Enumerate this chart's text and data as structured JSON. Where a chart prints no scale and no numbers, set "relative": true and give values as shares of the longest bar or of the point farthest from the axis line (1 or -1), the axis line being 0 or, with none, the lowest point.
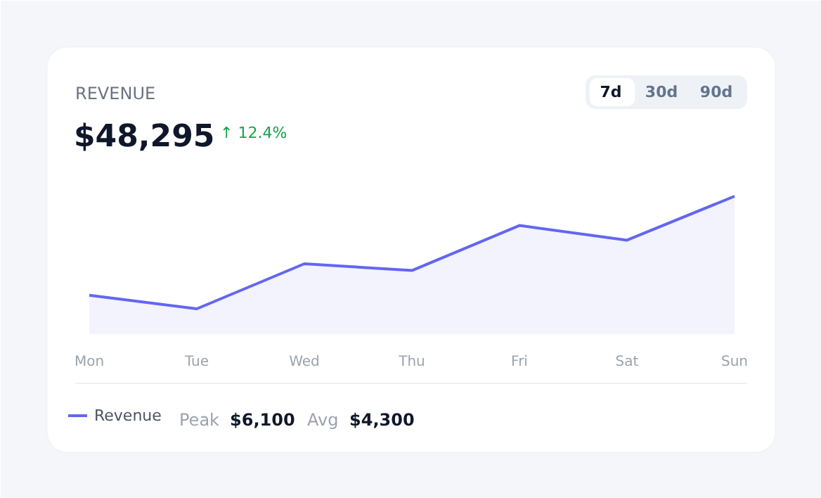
{
  "chart_data": {
    "type": "area",
    "title": "REVENUE",
    "subtitle": "$48,295",
    "categories": [
      "Mon",
      "Tue",
      "Wed",
      "Thu",
      "Fri",
      "Sat",
      "Sun"
    ],
    "relative": true,
    "series": [
      {
        "name": "Revenue",
        "color": "#6366f1",
        "values": [
          0.12,
          0,
          0.4,
          0.34,
          0.74,
          0.61,
          1
        ]
      }
    ],
    "legend": "bottom left",
    "annotations": [
      "↑ 12.4%",
      "7d",
      "30d",
      "90d",
      "Peak $6,100",
      "Avg $4,300"
    ]
  }
}
